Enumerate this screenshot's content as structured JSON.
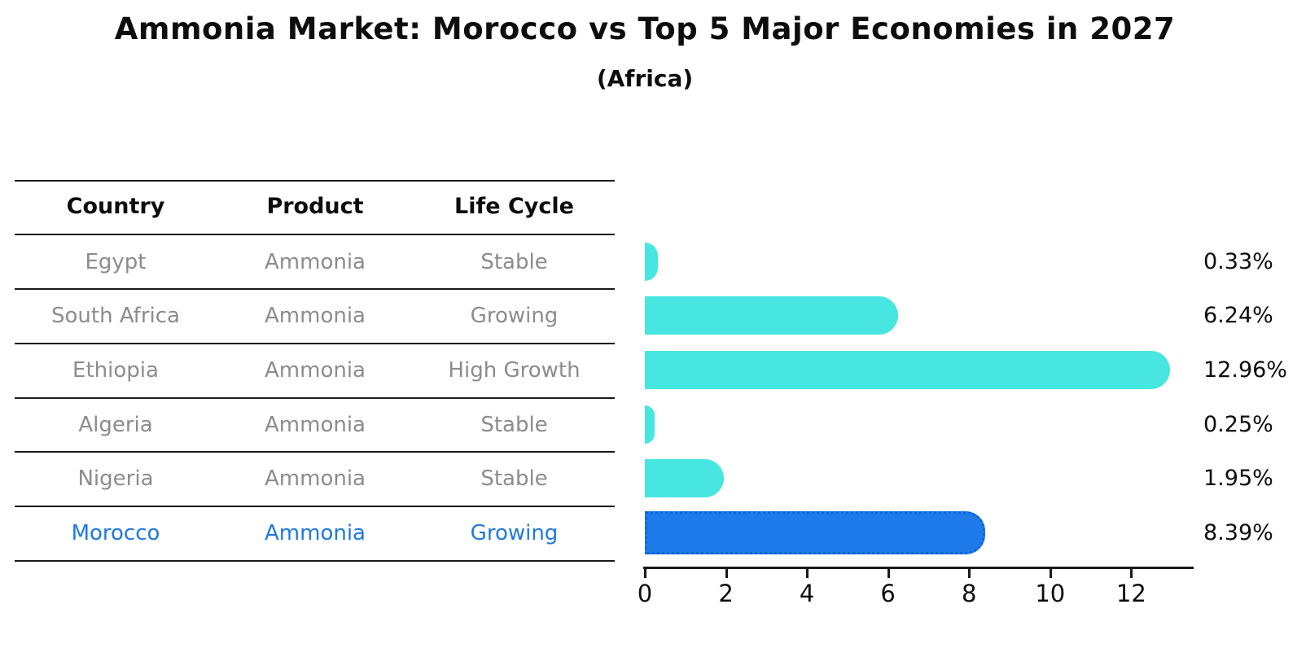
{
  "header": {
    "title": "Ammonia Market: Morocco vs Top 5 Major Economies in 2027",
    "subtitle": "(Africa)"
  },
  "table": {
    "headers": [
      "Country",
      "Product",
      "Life Cycle"
    ],
    "rows": [
      {
        "country": "Egypt",
        "product": "Ammonia",
        "life_cycle": "Stable"
      },
      {
        "country": "South Africa",
        "product": "Ammonia",
        "life_cycle": "Growing"
      },
      {
        "country": "Ethiopia",
        "product": "Ammonia",
        "life_cycle": "High Growth"
      },
      {
        "country": "Algeria",
        "product": "Ammonia",
        "life_cycle": "Stable"
      },
      {
        "country": "Nigeria",
        "product": "Ammonia",
        "life_cycle": "Stable"
      },
      {
        "country": "Morocco",
        "product": "Ammonia",
        "life_cycle": "Growing"
      }
    ]
  },
  "chart_data": {
    "type": "bar",
    "orientation": "horizontal",
    "title": "Ammonia Market: Morocco vs Top 5 Major Economies in 2027 (Africa)",
    "categories": [
      "Egypt",
      "South Africa",
      "Ethiopia",
      "Algeria",
      "Nigeria",
      "Morocco"
    ],
    "values": [
      0.33,
      6.24,
      12.96,
      0.25,
      1.95,
      8.39
    ],
    "value_labels": [
      "0.33%",
      "6.24%",
      "12.96%",
      "0.25%",
      "1.95%",
      "8.39%"
    ],
    "xlabel": "",
    "ylabel": "",
    "xlim": [
      0,
      13.5
    ],
    "xticks": [
      0,
      2,
      4,
      6,
      8,
      10,
      12
    ],
    "grid": false,
    "legend": false,
    "bar_color": "#48E6E0",
    "highlight_index": 5,
    "highlight_color": "#1E7BE9",
    "highlight_border_color": "#0B65DC",
    "highlight_text_color": "#1F78E0"
  }
}
